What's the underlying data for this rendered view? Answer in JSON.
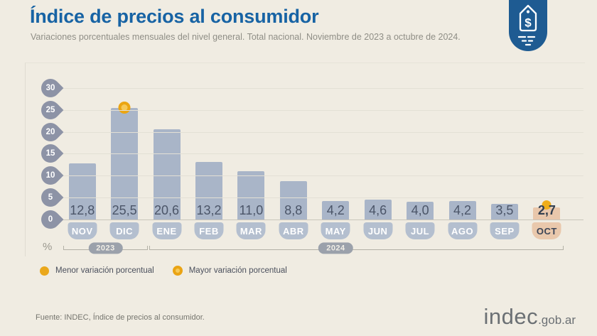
{
  "header": {
    "title": "Índice de precios al consumidor",
    "subtitle": "Variaciones porcentuales mensuales del nivel general. Total nacional. Noviembre de 2023 a octubre de 2024."
  },
  "chart_data": {
    "type": "bar",
    "title": "Índice de precios al consumidor",
    "subtitle": "Variaciones porcentuales mensuales del nivel general. Total nacional. Noviembre de 2023 a octubre de 2024",
    "categories": [
      "NOV",
      "DIC",
      "ENE",
      "FEB",
      "MAR",
      "ABR",
      "MAY",
      "JUN",
      "JUL",
      "AGO",
      "SEP",
      "OCT"
    ],
    "values": [
      12.8,
      25.5,
      20.6,
      13.2,
      11.0,
      8.8,
      4.2,
      4.6,
      4.0,
      4.2,
      3.5,
      2.7
    ],
    "value_labels": [
      "12,8",
      "25,5",
      "20,6",
      "13,2",
      "11,0",
      "8,8",
      "4,2",
      "4,6",
      "4,0",
      "4,2",
      "3,5",
      "2,7"
    ],
    "xlabel": "",
    "ylabel": "%",
    "ylim": [
      0,
      30
    ],
    "yticks": [
      0,
      5,
      10,
      15,
      20,
      25,
      30
    ],
    "grid": true,
    "year_groups": [
      {
        "label": "2023",
        "from": "NOV",
        "to": "DIC"
      },
      {
        "label": "2024",
        "from": "ENE",
        "to": "OCT"
      }
    ],
    "annotations": {
      "min_marker": {
        "category": "OCT",
        "value": 2.7,
        "meaning": "Menor variación porcentual"
      },
      "max_marker": {
        "category": "DIC",
        "value": 25.5,
        "meaning": "Mayor variación porcentual"
      }
    },
    "highlight_category": "OCT",
    "colors": {
      "bar": "#a9b5c8",
      "highlight_bar": "#e9c7ab",
      "marker_yellow": "#efad19",
      "axis_badge": "#8d93a6",
      "month_badge": "#b4bfcf",
      "title_blue": "#1763a4",
      "icon_blue": "#1e5b92",
      "background": "#f0ece2"
    }
  },
  "legend": {
    "items": [
      {
        "icon": "solid-yellow-dot",
        "label": "Menor variación porcentual"
      },
      {
        "icon": "ring-yellow-dot",
        "label": "Mayor variación porcentual"
      }
    ]
  },
  "footer": {
    "source": "Fuente: INDEC, Índice de precios al consumidor.",
    "logo_main": "indec",
    "logo_suffix": ".gob.ar"
  }
}
